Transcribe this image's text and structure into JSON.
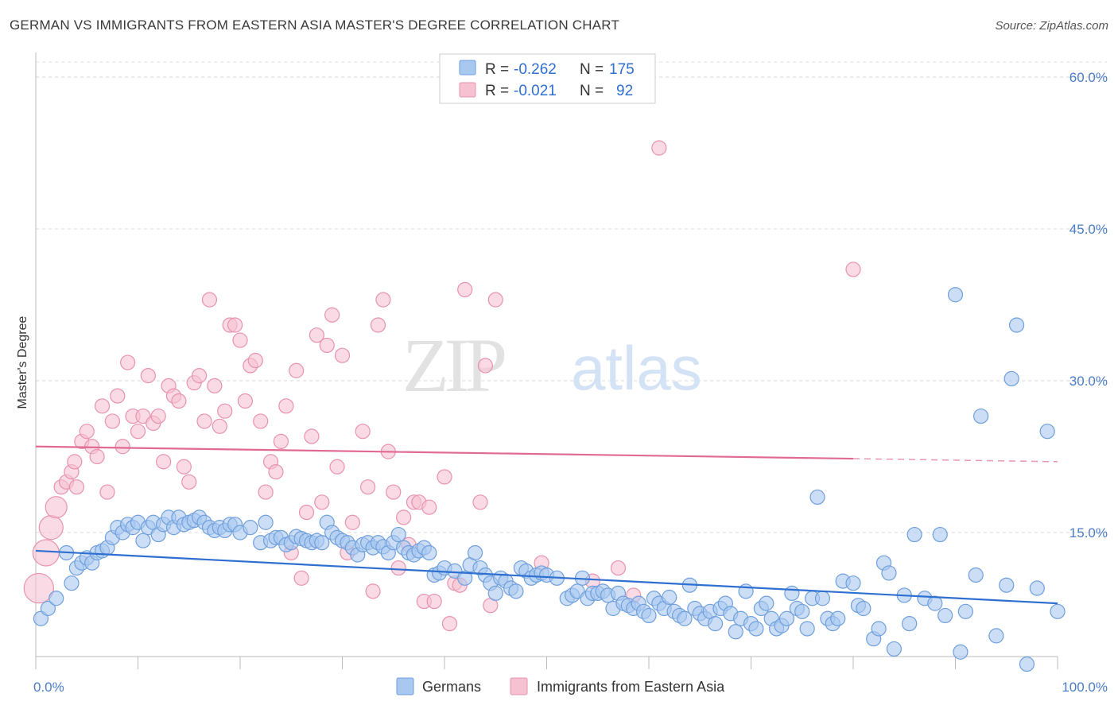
{
  "title": "GERMAN VS IMMIGRANTS FROM EASTERN ASIA MASTER'S DEGREE CORRELATION CHART",
  "source": "Source: ZipAtlas.com",
  "watermark": {
    "zip": "ZIP",
    "atlas": "atlas"
  },
  "colors": {
    "blue_fill": "#a8c8f0",
    "blue_stroke": "#6f9fdc",
    "blue_line": "#2f6fd0",
    "pink_fill": "#f6c2d2",
    "pink_stroke": "#e893ae",
    "pink_line": "#e06a92",
    "grid": "#d8d8d8",
    "tick_text": "#4a7cc7"
  },
  "legend": {
    "rows": [
      {
        "r_label": "R =",
        "r_value": "-0.262",
        "n_label": "N =",
        "n_value": "175"
      },
      {
        "r_label": "R =",
        "r_value": "-0.021",
        "n_label": "N =",
        "n_value": "92"
      }
    ]
  },
  "bottom_legend": [
    "Germans",
    "Immigrants from Eastern Asia"
  ],
  "chart_data": {
    "type": "scatter",
    "xlabel": "",
    "ylabel": "Master's Degree",
    "xlim": [
      0,
      100
    ],
    "ylim": [
      0,
      62
    ],
    "x_tick_labels": [
      "0.0%",
      "100.0%"
    ],
    "y_ticks": [
      15,
      30,
      45,
      60
    ],
    "y_tick_labels": [
      "15.0%",
      "30.0%",
      "45.0%",
      "60.0%"
    ],
    "grid": "horizontal-dashed",
    "legend_position": "top-center",
    "series": [
      {
        "name": "Germans",
        "trend": {
          "x": [
            0,
            100
          ],
          "y": [
            13.2,
            8.0
          ],
          "dashed_from": null
        },
        "points": [
          [
            0.5,
            6.5
          ],
          [
            1.2,
            7.5
          ],
          [
            2.0,
            8.5
          ],
          [
            3.0,
            13
          ],
          [
            3.5,
            10
          ],
          [
            4.0,
            11.5
          ],
          [
            4.5,
            12
          ],
          [
            5.0,
            12.5
          ],
          [
            5.5,
            12
          ],
          [
            6.0,
            13
          ],
          [
            6.5,
            13.2
          ],
          [
            7.0,
            13.5
          ],
          [
            7.5,
            14.5
          ],
          [
            8.0,
            15.5
          ],
          [
            8.5,
            15
          ],
          [
            9.0,
            15.8
          ],
          [
            9.5,
            15.5
          ],
          [
            10.0,
            16
          ],
          [
            10.5,
            14.2
          ],
          [
            11.0,
            15.5
          ],
          [
            11.5,
            16
          ],
          [
            12.0,
            14.8
          ],
          [
            12.5,
            15.8
          ],
          [
            13.0,
            16.5
          ],
          [
            13.5,
            15.5
          ],
          [
            14.0,
            16.5
          ],
          [
            14.5,
            15.8
          ],
          [
            15.0,
            16
          ],
          [
            15.5,
            16.2
          ],
          [
            16.0,
            16.5
          ],
          [
            16.5,
            16
          ],
          [
            17.0,
            15.5
          ],
          [
            17.5,
            15.2
          ],
          [
            18.0,
            15.5
          ],
          [
            18.5,
            15.2
          ],
          [
            19.0,
            15.8
          ],
          [
            19.5,
            15.8
          ],
          [
            20.0,
            15
          ],
          [
            21.0,
            15.5
          ],
          [
            22.0,
            14
          ],
          [
            22.5,
            16
          ],
          [
            23.0,
            14.2
          ],
          [
            23.5,
            14.5
          ],
          [
            24.0,
            14.5
          ],
          [
            24.5,
            13.8
          ],
          [
            25.0,
            14
          ],
          [
            25.5,
            14.6
          ],
          [
            26.0,
            14.4
          ],
          [
            26.5,
            14.2
          ],
          [
            27.0,
            14
          ],
          [
            27.5,
            14.2
          ],
          [
            28.0,
            14
          ],
          [
            28.5,
            16
          ],
          [
            29.0,
            15
          ],
          [
            29.5,
            14.5
          ],
          [
            30.0,
            14.2
          ],
          [
            30.5,
            14
          ],
          [
            31.0,
            13.5
          ],
          [
            31.5,
            12.8
          ],
          [
            32.0,
            13.8
          ],
          [
            32.5,
            14
          ],
          [
            33.0,
            13.5
          ],
          [
            33.5,
            14
          ],
          [
            34.0,
            13.6
          ],
          [
            34.5,
            13
          ],
          [
            35.0,
            14
          ],
          [
            35.5,
            14.8
          ],
          [
            36.0,
            13.5
          ],
          [
            36.5,
            13
          ],
          [
            37.0,
            12.8
          ],
          [
            37.5,
            13.2
          ],
          [
            38.0,
            13.5
          ],
          [
            38.5,
            13
          ],
          [
            39.0,
            10.8
          ],
          [
            39.5,
            11
          ],
          [
            40.0,
            11.5
          ],
          [
            41.0,
            11.2
          ],
          [
            42.0,
            10.5
          ],
          [
            42.5,
            11.8
          ],
          [
            43.0,
            13
          ],
          [
            43.5,
            11.5
          ],
          [
            44.0,
            10.8
          ],
          [
            44.5,
            10
          ],
          [
            45.0,
            9
          ],
          [
            45.5,
            10.5
          ],
          [
            46.0,
            10.2
          ],
          [
            46.5,
            9.5
          ],
          [
            47.0,
            9.2
          ],
          [
            47.5,
            11.5
          ],
          [
            48.0,
            11.2
          ],
          [
            48.5,
            10.5
          ],
          [
            49.0,
            10.8
          ],
          [
            49.5,
            11
          ],
          [
            50.0,
            10.8
          ],
          [
            51.0,
            10.5
          ],
          [
            52.0,
            8.5
          ],
          [
            52.5,
            8.8
          ],
          [
            53.0,
            9.2
          ],
          [
            53.5,
            10.5
          ],
          [
            54.0,
            8.5
          ],
          [
            54.5,
            9
          ],
          [
            55.0,
            9
          ],
          [
            55.5,
            9.2
          ],
          [
            56.0,
            8.8
          ],
          [
            56.5,
            7.5
          ],
          [
            57.0,
            9
          ],
          [
            57.5,
            8
          ],
          [
            58.0,
            7.8
          ],
          [
            58.5,
            7.5
          ],
          [
            59.0,
            8
          ],
          [
            59.5,
            7.2
          ],
          [
            60.0,
            6.8
          ],
          [
            60.5,
            8.5
          ],
          [
            61.0,
            8
          ],
          [
            61.5,
            7.5
          ],
          [
            62.0,
            8.6
          ],
          [
            62.5,
            7.2
          ],
          [
            63.0,
            6.8
          ],
          [
            63.5,
            6.5
          ],
          [
            64.0,
            9.8
          ],
          [
            64.5,
            7.5
          ],
          [
            65.0,
            7
          ],
          [
            65.5,
            6.5
          ],
          [
            66.0,
            7.2
          ],
          [
            66.5,
            6
          ],
          [
            67.0,
            7.5
          ],
          [
            67.5,
            8
          ],
          [
            68.0,
            7
          ],
          [
            68.5,
            5.2
          ],
          [
            69.0,
            6.5
          ],
          [
            69.5,
            9.2
          ],
          [
            70.0,
            6
          ],
          [
            70.5,
            5.5
          ],
          [
            71.0,
            7.5
          ],
          [
            71.5,
            8
          ],
          [
            72.0,
            6.5
          ],
          [
            72.5,
            5.5
          ],
          [
            73.0,
            5.8
          ],
          [
            73.5,
            6.5
          ],
          [
            74.0,
            9
          ],
          [
            74.5,
            7.5
          ],
          [
            75.0,
            7.2
          ],
          [
            75.5,
            5.5
          ],
          [
            76.0,
            8.5
          ],
          [
            76.5,
            18.5
          ],
          [
            77.0,
            8.5
          ],
          [
            77.5,
            6.5
          ],
          [
            78.0,
            6
          ],
          [
            78.5,
            6.5
          ],
          [
            79.0,
            10.2
          ],
          [
            80.0,
            10
          ],
          [
            80.5,
            7.8
          ],
          [
            81.0,
            7.5
          ],
          [
            82.0,
            4.5
          ],
          [
            82.5,
            5.5
          ],
          [
            83.0,
            12
          ],
          [
            83.5,
            11
          ],
          [
            84.0,
            3.5
          ],
          [
            85.0,
            8.8
          ],
          [
            85.5,
            6
          ],
          [
            86.0,
            14.8
          ],
          [
            87.0,
            8.5
          ],
          [
            88.0,
            8
          ],
          [
            88.5,
            14.8
          ],
          [
            89.0,
            6.8
          ],
          [
            90.0,
            38.5
          ],
          [
            90.5,
            3.2
          ],
          [
            91.0,
            7.2
          ],
          [
            92.0,
            10.8
          ],
          [
            92.5,
            26.5
          ],
          [
            94.0,
            4.8
          ],
          [
            95.0,
            9.8
          ],
          [
            95.5,
            30.2
          ],
          [
            96.0,
            35.5
          ],
          [
            97.0,
            2
          ],
          [
            98.0,
            9.5
          ],
          [
            99.0,
            25
          ],
          [
            100.0,
            7.2
          ]
        ]
      },
      {
        "name": "Immigrants from Eastern Asia",
        "trend": {
          "x": [
            0,
            100
          ],
          "y": [
            23.5,
            22.0
          ],
          "dashed_from": 80
        },
        "points": [
          [
            0.3,
            9.5
          ],
          [
            1.0,
            13
          ],
          [
            1.5,
            15.5
          ],
          [
            2.0,
            17.5
          ],
          [
            2.5,
            19.5
          ],
          [
            3.0,
            20
          ],
          [
            3.5,
            21
          ],
          [
            3.8,
            22
          ],
          [
            4.0,
            19.5
          ],
          [
            4.5,
            24
          ],
          [
            5.0,
            25
          ],
          [
            5.5,
            23.5
          ],
          [
            6.0,
            22.5
          ],
          [
            6.5,
            27.5
          ],
          [
            7.0,
            19
          ],
          [
            7.5,
            26
          ],
          [
            8.0,
            28.5
          ],
          [
            8.5,
            23.5
          ],
          [
            9.0,
            31.8
          ],
          [
            9.5,
            26.5
          ],
          [
            10.0,
            25
          ],
          [
            10.5,
            26.5
          ],
          [
            11.0,
            30.5
          ],
          [
            11.5,
            25.8
          ],
          [
            12.0,
            26.5
          ],
          [
            12.5,
            22
          ],
          [
            13.0,
            29.5
          ],
          [
            13.5,
            28.5
          ],
          [
            14.0,
            28
          ],
          [
            14.5,
            21.5
          ],
          [
            15.0,
            20
          ],
          [
            15.5,
            29.8
          ],
          [
            16.0,
            30.5
          ],
          [
            16.5,
            26
          ],
          [
            17.0,
            38
          ],
          [
            17.5,
            29.5
          ],
          [
            18.0,
            25.5
          ],
          [
            18.5,
            27
          ],
          [
            19.0,
            35.5
          ],
          [
            19.5,
            35.5
          ],
          [
            20.0,
            34
          ],
          [
            20.5,
            28
          ],
          [
            21.0,
            31.5
          ],
          [
            21.5,
            32
          ],
          [
            22.0,
            26
          ],
          [
            22.5,
            19
          ],
          [
            23.0,
            22
          ],
          [
            23.5,
            21
          ],
          [
            24.0,
            24
          ],
          [
            24.5,
            27.5
          ],
          [
            25.0,
            13
          ],
          [
            25.5,
            31
          ],
          [
            26.0,
            10.5
          ],
          [
            26.5,
            17
          ],
          [
            27.0,
            24.5
          ],
          [
            27.5,
            34.5
          ],
          [
            28.0,
            18
          ],
          [
            28.5,
            33.5
          ],
          [
            29.0,
            36.5
          ],
          [
            29.5,
            21.5
          ],
          [
            30.0,
            32.5
          ],
          [
            30.5,
            13
          ],
          [
            31.0,
            16
          ],
          [
            32.0,
            25
          ],
          [
            32.5,
            19.5
          ],
          [
            33.0,
            9.2
          ],
          [
            33.5,
            35.5
          ],
          [
            34.0,
            38
          ],
          [
            34.5,
            23
          ],
          [
            35.0,
            19
          ],
          [
            35.5,
            11.5
          ],
          [
            36.0,
            16.5
          ],
          [
            36.5,
            13.8
          ],
          [
            37.0,
            18
          ],
          [
            37.5,
            18
          ],
          [
            38.0,
            8.2
          ],
          [
            38.5,
            17.5
          ],
          [
            39.0,
            8.2
          ],
          [
            40.0,
            20.5
          ],
          [
            40.5,
            6
          ],
          [
            41.0,
            10
          ],
          [
            41.5,
            9.8
          ],
          [
            42.0,
            39
          ],
          [
            43.5,
            18
          ],
          [
            44.0,
            31.5
          ],
          [
            44.5,
            7.8
          ],
          [
            45.0,
            38
          ],
          [
            49.5,
            12
          ],
          [
            54.5,
            10.2
          ],
          [
            57.0,
            11.5
          ],
          [
            58.5,
            8.8
          ],
          [
            61.0,
            53
          ],
          [
            80.0,
            41
          ]
        ]
      }
    ]
  }
}
